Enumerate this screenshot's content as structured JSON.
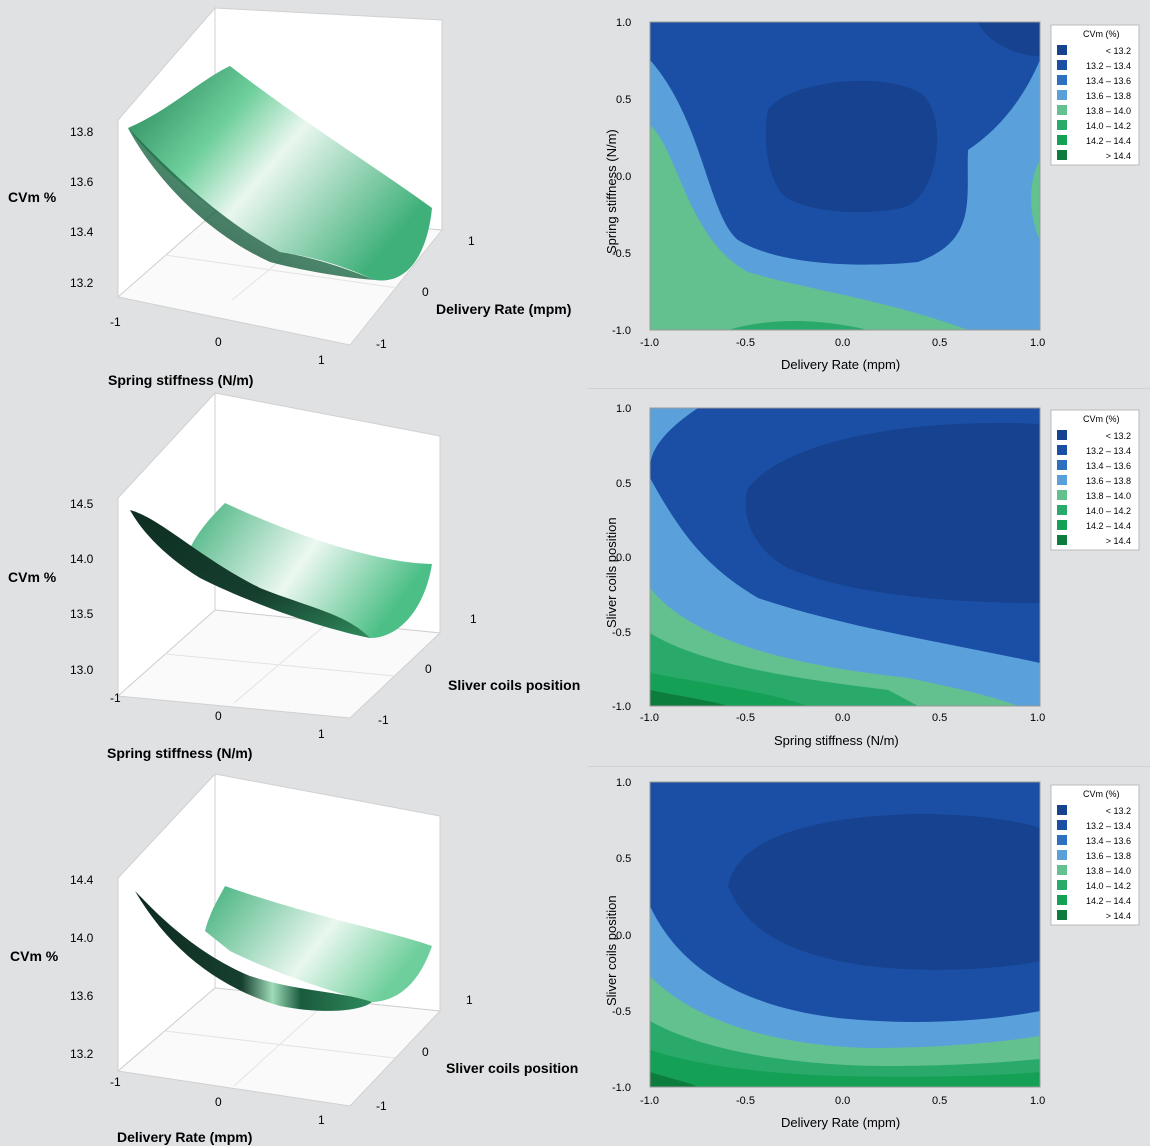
{
  "colors": {
    "background": "#dfe1e3",
    "surface_light": "#f4faf6",
    "surface_mid": "#4fbe87",
    "surface_dark": "#0f3b2a",
    "bins": [
      "#16428f",
      "#1a4fa5",
      "#2f6fc0",
      "#5aa1dc",
      "#63c08f",
      "#29a96a",
      "#14a055",
      "#0c7d3c"
    ]
  },
  "legend": {
    "title": "CVm (%)",
    "entries": [
      "< 13.2",
      "13.2 – 13.4",
      "13.4 – 13.6",
      "13.6 – 13.8",
      "13.8 – 14.0",
      "14.0 – 14.2",
      "14.2 – 14.4",
      "> 14.4"
    ]
  },
  "chart_data": [
    {
      "type": "surface",
      "zlabel": "CVm %",
      "xlabel": "Spring stiffness (N/m)",
      "ylabel": "Delivery Rate (mpm)",
      "x_ticks": [
        "-1",
        "0",
        "1"
      ],
      "y_ticks": [
        "-1",
        "0",
        "1"
      ],
      "z_ticks": [
        "13.2",
        "13.4",
        "13.6",
        "13.8"
      ]
    },
    {
      "type": "contour",
      "xlabel": "Delivery Rate (mpm)",
      "ylabel": "Spring stiffness (N/m)",
      "x_ticks": [
        "-1.0",
        "-0.5",
        "0.0",
        "0.5",
        "1.0"
      ],
      "y_ticks": [
        "-1.0",
        "-0.5",
        "0.0",
        "0.5",
        "1.0"
      ],
      "zlabel": "CVm (%)"
    },
    {
      "type": "surface",
      "zlabel": "CVm %",
      "xlabel": "Spring stiffness (N/m)",
      "ylabel": "Sliver coils position",
      "x_ticks": [
        "-1",
        "0",
        "1"
      ],
      "y_ticks": [
        "-1",
        "0",
        "1"
      ],
      "z_ticks": [
        "13.0",
        "13.5",
        "14.0",
        "14.5"
      ]
    },
    {
      "type": "contour",
      "xlabel": "Spring stiffness (N/m)",
      "ylabel": "Sliver coils position",
      "x_ticks": [
        "-1.0",
        "-0.5",
        "0.0",
        "0.5",
        "1.0"
      ],
      "y_ticks": [
        "-1.0",
        "-0.5",
        "0.0",
        "0.5",
        "1.0"
      ],
      "zlabel": "CVm (%)"
    },
    {
      "type": "surface",
      "zlabel": "CVm %",
      "xlabel": "Delivery Rate (mpm)",
      "ylabel": "Sliver coils position",
      "x_ticks": [
        "-1",
        "0",
        "1"
      ],
      "y_ticks": [
        "-1",
        "0",
        "1"
      ],
      "z_ticks": [
        "13.2",
        "13.6",
        "14.0",
        "14.4"
      ]
    },
    {
      "type": "contour",
      "xlabel": "Delivery Rate (mpm)",
      "ylabel": "Sliver coils position",
      "x_ticks": [
        "-1.0",
        "-0.5",
        "0.0",
        "0.5",
        "1.0"
      ],
      "y_ticks": [
        "-1.0",
        "-0.5",
        "0.0",
        "0.5",
        "1.0"
      ],
      "zlabel": "CVm (%)"
    }
  ]
}
